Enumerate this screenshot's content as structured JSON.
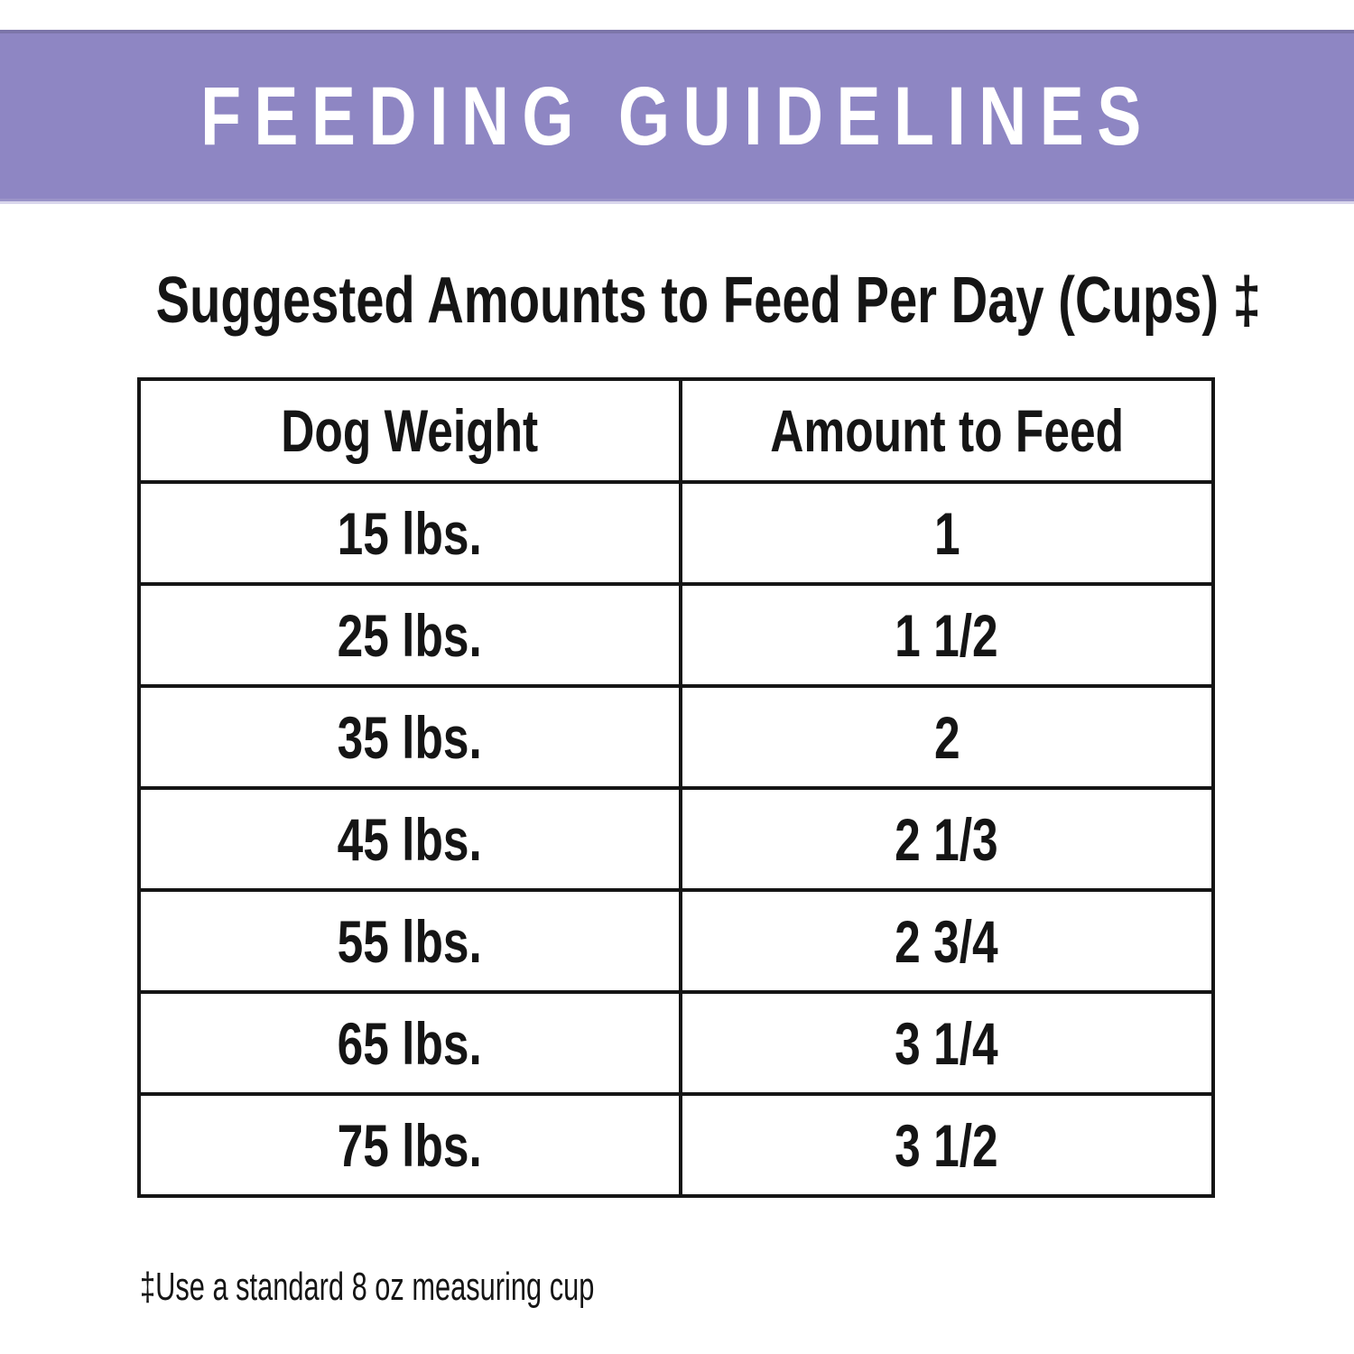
{
  "banner": {
    "title": "FEEDING GUIDELINES",
    "background_color": "#8E86C3",
    "text_color": "#FFFFFF"
  },
  "title": {
    "text": "Suggested Amounts to Feed Per Day (Cups) ‡"
  },
  "table": {
    "headers": [
      "Dog Weight",
      "Amount to Feed"
    ],
    "rows": [
      {
        "weight": "15 lbs.",
        "amount": "1"
      },
      {
        "weight": "25 lbs.",
        "amount": "1 1/2"
      },
      {
        "weight": "35 lbs.",
        "amount": "2"
      },
      {
        "weight": "45 lbs.",
        "amount": "2 1/3"
      },
      {
        "weight": "55 lbs.",
        "amount": "2 3/4"
      },
      {
        "weight": "65 lbs.",
        "amount": "3 1/4"
      },
      {
        "weight": "75 lbs.",
        "amount": "3 1/2"
      }
    ],
    "border_color": "#151515"
  },
  "footnote": {
    "text": "‡Use a standard 8 oz measuring cup"
  },
  "chart_data": {
    "type": "table",
    "title": "Suggested Amounts to Feed Per Day (Cups)",
    "columns": [
      "Dog Weight",
      "Amount to Feed"
    ],
    "rows": [
      [
        "15 lbs.",
        "1"
      ],
      [
        "25 lbs.",
        "1 1/2"
      ],
      [
        "35 lbs.",
        "2"
      ],
      [
        "45 lbs.",
        "2 1/3"
      ],
      [
        "55 lbs.",
        "2 3/4"
      ],
      [
        "65 lbs.",
        "3 1/4"
      ],
      [
        "75 lbs.",
        "3 1/2"
      ]
    ],
    "note": "Use a standard 8 oz measuring cup"
  }
}
